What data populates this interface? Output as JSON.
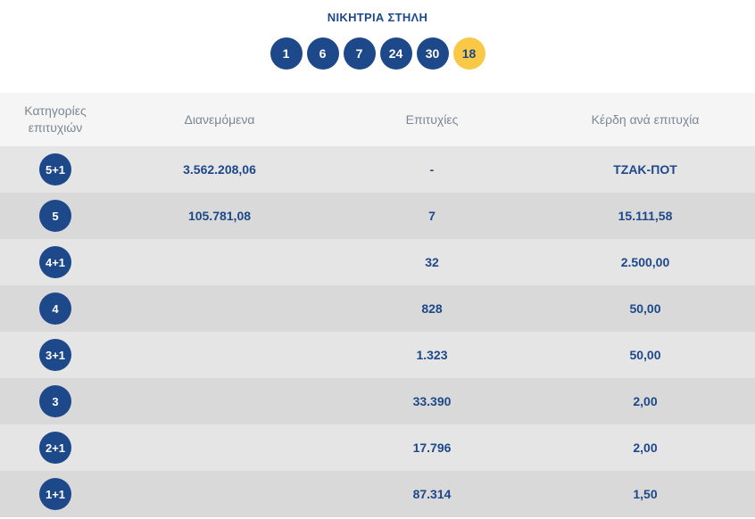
{
  "title": "ΝΙΚΗΤΡΙΑ ΣΤΗΛΗ",
  "winning_numbers": [
    "1",
    "6",
    "7",
    "24",
    "30"
  ],
  "bonus_number": "18",
  "colors": {
    "primary": "#1d4889",
    "bonus": "#f9c847",
    "header_text": "#7b8794"
  },
  "table": {
    "headers": {
      "category_line1": "Κατηγορίες",
      "category_line2": "επιτυχιών",
      "distributed": "Διανεμόμενα",
      "winners": "Επιτυχίες",
      "prize": "Κέρδη ανά επιτυχία"
    },
    "rows": [
      {
        "category": "5+1",
        "distributed": "3.562.208,06",
        "winners": "-",
        "prize": "ΤΖΑΚ-ΠΟΤ"
      },
      {
        "category": "5",
        "distributed": "105.781,08",
        "winners": "7",
        "prize": "15.111,58"
      },
      {
        "category": "4+1",
        "distributed": "",
        "winners": "32",
        "prize": "2.500,00"
      },
      {
        "category": "4",
        "distributed": "",
        "winners": "828",
        "prize": "50,00"
      },
      {
        "category": "3+1",
        "distributed": "",
        "winners": "1.323",
        "prize": "50,00"
      },
      {
        "category": "3",
        "distributed": "",
        "winners": "33.390",
        "prize": "2,00"
      },
      {
        "category": "2+1",
        "distributed": "",
        "winners": "17.796",
        "prize": "2,00"
      },
      {
        "category": "1+1",
        "distributed": "",
        "winners": "87.314",
        "prize": "1,50"
      }
    ]
  }
}
